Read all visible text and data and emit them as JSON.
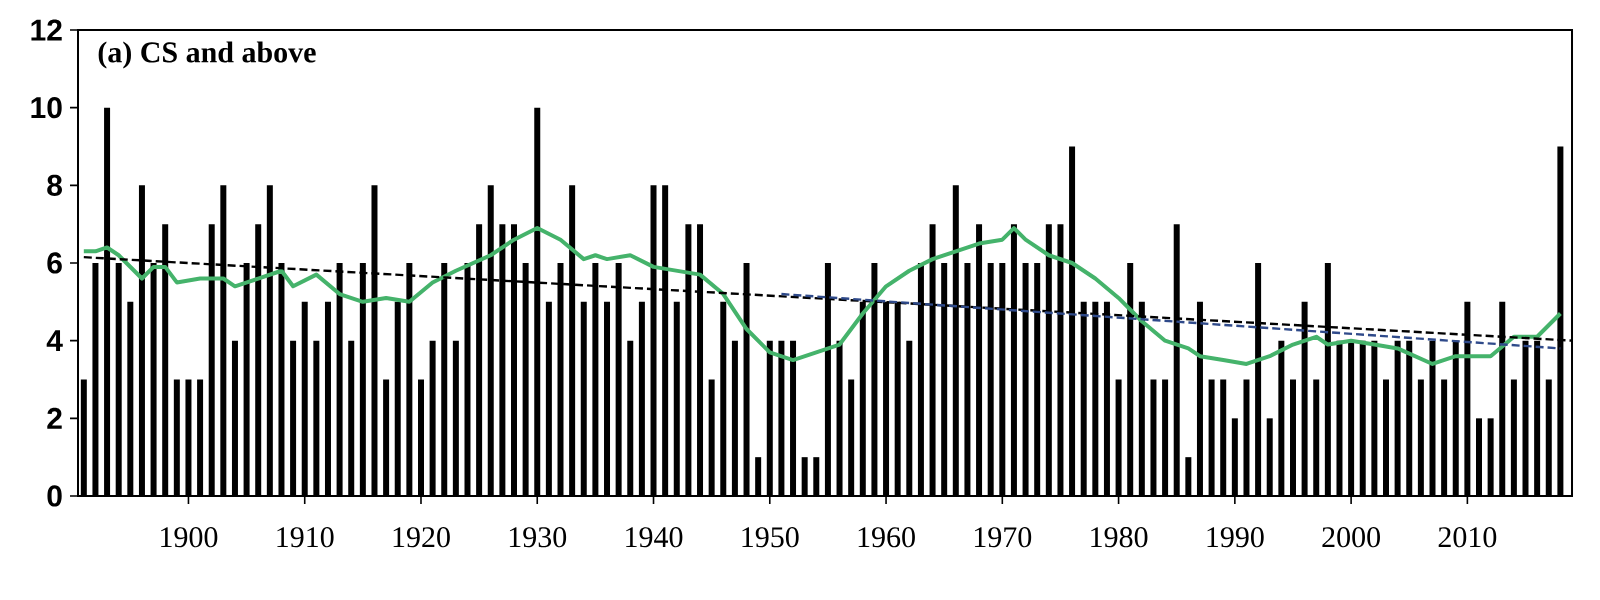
{
  "chart_data": {
    "type": "bar",
    "title": "(a) CS and above",
    "x": [
      1891,
      1892,
      1893,
      1894,
      1895,
      1896,
      1897,
      1898,
      1899,
      1900,
      1901,
      1902,
      1903,
      1904,
      1905,
      1906,
      1907,
      1908,
      1909,
      1910,
      1911,
      1912,
      1913,
      1914,
      1915,
      1916,
      1917,
      1918,
      1919,
      1920,
      1921,
      1922,
      1923,
      1924,
      1925,
      1926,
      1927,
      1928,
      1929,
      1930,
      1931,
      1932,
      1933,
      1934,
      1935,
      1936,
      1937,
      1938,
      1939,
      1940,
      1941,
      1942,
      1943,
      1944,
      1945,
      1946,
      1947,
      1948,
      1949,
      1950,
      1951,
      1952,
      1953,
      1954,
      1955,
      1956,
      1957,
      1958,
      1959,
      1960,
      1961,
      1962,
      1963,
      1964,
      1965,
      1966,
      1967,
      1968,
      1969,
      1970,
      1971,
      1972,
      1973,
      1974,
      1975,
      1976,
      1977,
      1978,
      1979,
      1980,
      1981,
      1982,
      1983,
      1984,
      1985,
      1986,
      1987,
      1988,
      1989,
      1990,
      1991,
      1992,
      1993,
      1994,
      1995,
      1996,
      1997,
      1998,
      1999,
      2000,
      2001,
      2002,
      2003,
      2004,
      2005,
      2006,
      2007,
      2008,
      2009,
      2010,
      2011,
      2012,
      2013,
      2014,
      2015,
      2016,
      2017,
      2018
    ],
    "series": [
      {
        "color": "#000000",
        "values": [
          3,
          6,
          10,
          6,
          5,
          8,
          6,
          7,
          3,
          3,
          3,
          7,
          8,
          4,
          6,
          7,
          8,
          6,
          4,
          5,
          4,
          5,
          6,
          4,
          6,
          8,
          3,
          5,
          6,
          3,
          4,
          6,
          4,
          6,
          7,
          8,
          7,
          7,
          6,
          10,
          5,
          6,
          8,
          5,
          6,
          5,
          6,
          4,
          5,
          8,
          8,
          5,
          7,
          7,
          3,
          5,
          4,
          6,
          1,
          4,
          4,
          4,
          1,
          1,
          6,
          4,
          3,
          5,
          6,
          5,
          5,
          4,
          6,
          7,
          6,
          8,
          6,
          7,
          6,
          6,
          7,
          6,
          6,
          7,
          7,
          9,
          5,
          5,
          5,
          3,
          6,
          5,
          3,
          3,
          7,
          1,
          5,
          3,
          3,
          2,
          3,
          6,
          2,
          4,
          3,
          5,
          3,
          6,
          4,
          4,
          4,
          4,
          3,
          4,
          4,
          3,
          4,
          3,
          4,
          5,
          2,
          2,
          5,
          3,
          4,
          4,
          3,
          9
        ]
      },
      {
        "type": "line",
        "color": "#45b36b",
        "x": [
          1891,
          1892,
          1893,
          1894,
          1896,
          1897,
          1898,
          1899,
          1901,
          1903,
          1904,
          1906,
          1908,
          1909,
          1911,
          1913,
          1915,
          1917,
          1919,
          1921,
          1923,
          1926,
          1928,
          1930,
          1932,
          1934,
          1935,
          1936,
          1938,
          1940,
          1944,
          1946,
          1948,
          1950,
          1952,
          1954,
          1956,
          1958,
          1960,
          1962,
          1964,
          1966,
          1968,
          1970,
          1971,
          1972,
          1974,
          1976,
          1978,
          1980,
          1982,
          1984,
          1986,
          1987,
          1989,
          1991,
          1993,
          1995,
          1997,
          1998,
          2000,
          2002,
          2004,
          2007,
          2009,
          2012,
          2014,
          2016,
          2018
        ],
        "values": [
          6.3,
          6.3,
          6.4,
          6.2,
          5.6,
          5.9,
          5.9,
          5.5,
          5.6,
          5.6,
          5.4,
          5.6,
          5.8,
          5.4,
          5.7,
          5.2,
          5.0,
          5.1,
          5.0,
          5.5,
          5.8,
          6.2,
          6.6,
          6.9,
          6.6,
          6.1,
          6.2,
          6.1,
          6.2,
          5.9,
          5.7,
          5.2,
          4.3,
          3.7,
          3.5,
          3.7,
          3.9,
          4.7,
          5.4,
          5.8,
          6.1,
          6.3,
          6.5,
          6.6,
          6.9,
          6.6,
          6.2,
          6.0,
          5.6,
          5.1,
          4.5,
          4.0,
          3.8,
          3.6,
          3.5,
          3.4,
          3.6,
          3.9,
          4.1,
          3.9,
          4.0,
          3.9,
          3.8,
          3.4,
          3.6,
          3.6,
          4.1,
          4.1,
          4.7
        ]
      },
      {
        "type": "line",
        "color": "#000000",
        "line_style": "dashed",
        "x": [
          1891,
          2019
        ],
        "values": [
          6.15,
          4.0
        ]
      },
      {
        "type": "line",
        "color": "#2f4a8a",
        "line_style": "dashed",
        "x": [
          1951,
          2018
        ],
        "values": [
          5.2,
          3.8
        ]
      }
    ],
    "xlim": [
      1890.5,
      2019
    ],
    "ylim": [
      0,
      12
    ],
    "xticks": [
      1900,
      1910,
      1920,
      1930,
      1940,
      1950,
      1960,
      1970,
      1980,
      1990,
      2000,
      2010
    ],
    "yticks": [
      0,
      2,
      4,
      6,
      8,
      10,
      12
    ]
  }
}
